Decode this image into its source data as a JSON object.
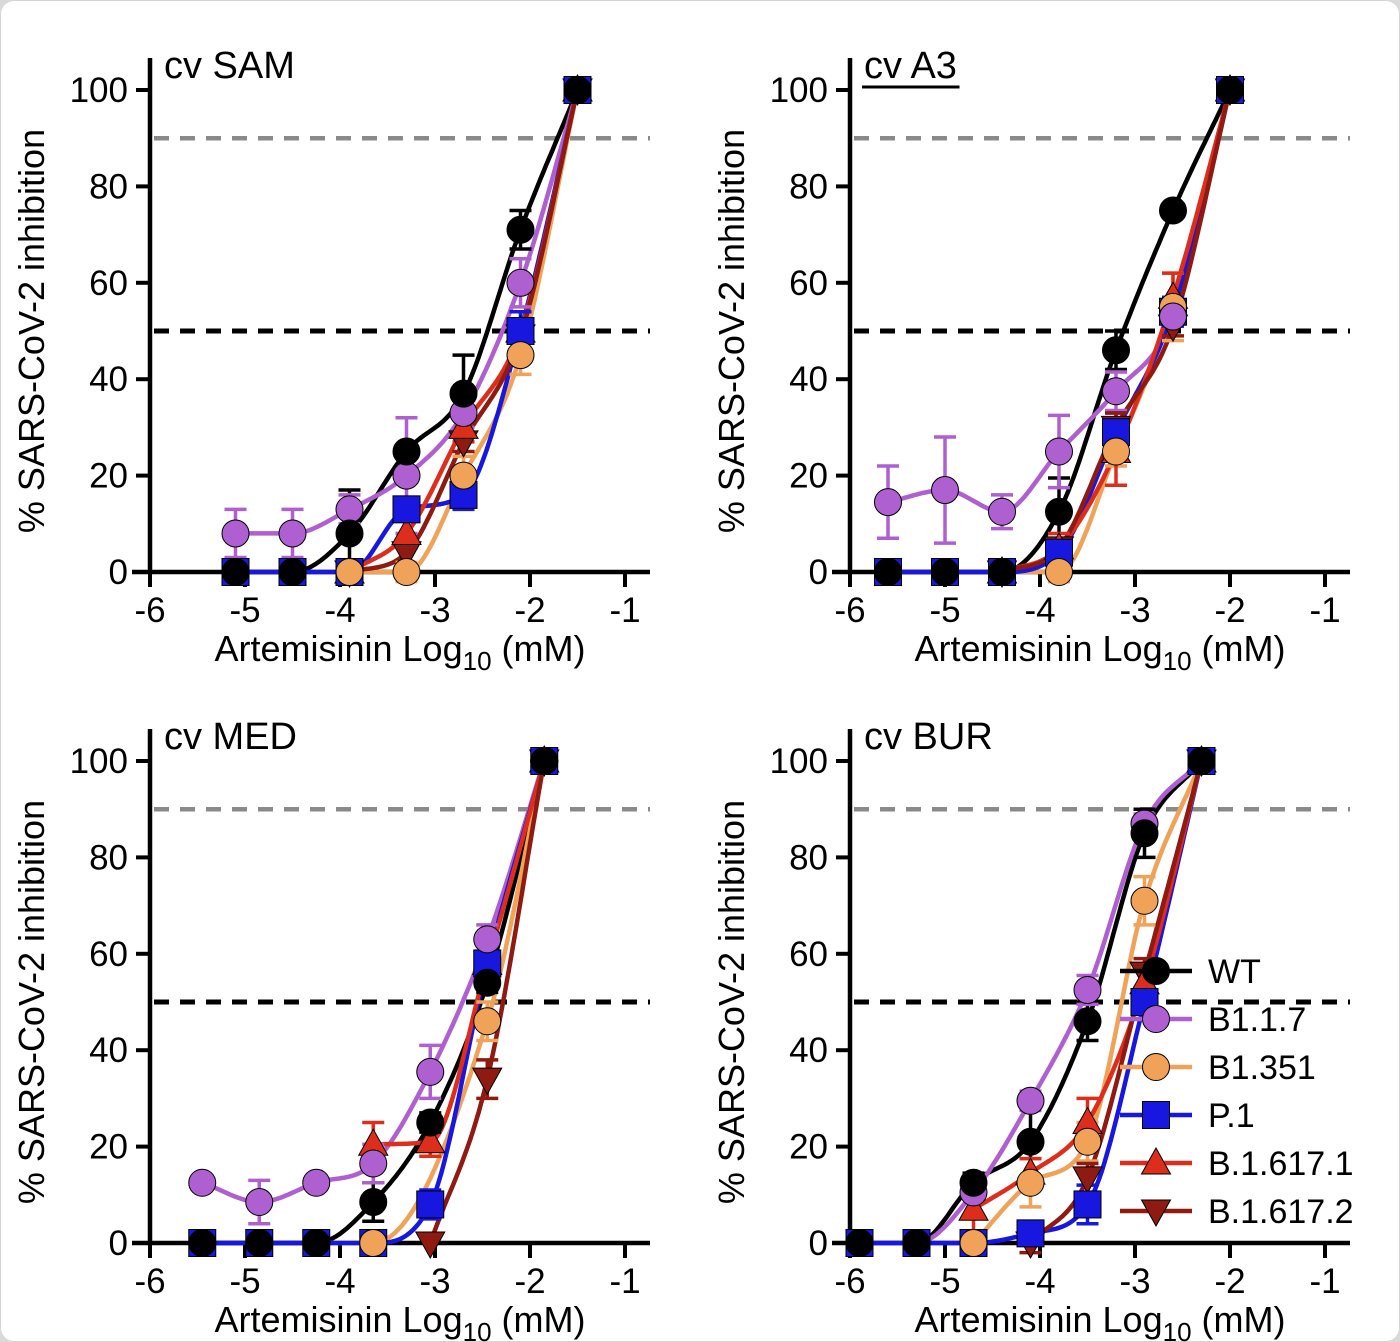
{
  "figure": {
    "y_axis_label": "% SARS-CoV-2 inhibition",
    "x_axis_label_prefix": "Artemisinin Log",
    "x_axis_label_sub": "10",
    "x_axis_label_suffix": " (mM)",
    "y_ticks": [
      0,
      20,
      40,
      60,
      80,
      100
    ],
    "x_ticks": [
      -6,
      -5,
      -4,
      -3,
      -2,
      -1
    ],
    "hlines": [
      {
        "y": 90,
        "color": "#8a8a8a"
      },
      {
        "y": 50,
        "color": "#000000"
      }
    ],
    "axis_color": "#000000",
    "background": "#ffffff"
  },
  "legend": {
    "items": [
      {
        "label": "WT",
        "color": "#000000",
        "marker": "circle"
      },
      {
        "label": "B1.1.7",
        "color": "#ae5fd0",
        "marker": "circle"
      },
      {
        "label": "B1.351",
        "color": "#efa258",
        "marker": "circle"
      },
      {
        "label": "P.1",
        "color": "#1717e0",
        "marker": "square"
      },
      {
        "label": "B.1.617.1",
        "color": "#dd2e1c",
        "marker": "triangle-up"
      },
      {
        "label": "B.1.617.2",
        "color": "#8e1a12",
        "marker": "triangle-down"
      }
    ]
  },
  "chart_data": [
    {
      "type": "line",
      "title": "cv SAM",
      "title_underline": false,
      "show_legend": false,
      "xlabel": "Artemisinin Log10 (mM)",
      "ylabel": "% SARS-CoV-2 inhibition",
      "xlim": [
        -6,
        -1
      ],
      "ylim": [
        0,
        100
      ],
      "x": [
        -5.1,
        -4.5,
        -3.9,
        -3.3,
        -2.7,
        -2.1,
        -1.5
      ],
      "series": [
        {
          "name": "WT",
          "values": [
            0,
            0,
            8,
            25,
            37,
            71,
            100
          ],
          "errors": [
            0,
            0,
            9,
            0,
            8,
            4,
            0
          ]
        },
        {
          "name": "B1.1.7",
          "values": [
            8,
            8,
            13,
            20,
            33,
            60,
            100
          ],
          "errors": [
            5,
            5,
            3,
            12,
            3,
            5,
            0
          ]
        },
        {
          "name": "B1.351",
          "values": [
            null,
            null,
            0,
            0,
            20,
            45,
            100
          ],
          "errors": [
            0,
            0,
            0,
            2,
            4,
            4,
            0
          ]
        },
        {
          "name": "P.1",
          "values": [
            0,
            0,
            0,
            13,
            16,
            50,
            100
          ],
          "errors": [
            0,
            0,
            0,
            2,
            3,
            4,
            0
          ]
        },
        {
          "name": "B.1.617.1",
          "values": [
            null,
            null,
            0,
            8,
            30,
            50,
            100
          ],
          "errors": [
            0,
            0,
            0,
            3,
            3,
            0,
            0
          ]
        },
        {
          "name": "B.1.617.2",
          "values": [
            null,
            null,
            0,
            4,
            27,
            49,
            100
          ],
          "errors": [
            0,
            0,
            0,
            0,
            2,
            0,
            0
          ]
        }
      ]
    },
    {
      "type": "line",
      "title": "cv A3",
      "title_underline": true,
      "show_legend": false,
      "xlabel": "Artemisinin Log10 (mM)",
      "ylabel": "% SARS-CoV-2 inhibition",
      "xlim": [
        -6,
        -1
      ],
      "ylim": [
        0,
        100
      ],
      "x": [
        -5.6,
        -5.0,
        -4.4,
        -3.8,
        -3.2,
        -2.6,
        -2.0
      ],
      "series": [
        {
          "name": "WT",
          "values": [
            0,
            0,
            0,
            12.5,
            46,
            75,
            100
          ],
          "errors": [
            0,
            0,
            0,
            7,
            4,
            0,
            0
          ]
        },
        {
          "name": "B1.1.7",
          "values": [
            14.5,
            17,
            12.5,
            25,
            37.5,
            53,
            100
          ],
          "errors": [
            7.5,
            11,
            3.5,
            7.5,
            4,
            0,
            0
          ]
        },
        {
          "name": "B1.351",
          "values": [
            null,
            null,
            0,
            0,
            25,
            55,
            100
          ],
          "errors": [
            0,
            0,
            0,
            2,
            3,
            7,
            0
          ]
        },
        {
          "name": "P.1",
          "values": [
            0,
            0,
            0,
            4,
            29,
            54,
            100
          ],
          "errors": [
            0,
            0,
            0,
            3,
            4,
            3,
            0
          ]
        },
        {
          "name": "B.1.617.1",
          "values": [
            null,
            null,
            0,
            5,
            25,
            57,
            100
          ],
          "errors": [
            0,
            0,
            0,
            3,
            7,
            5,
            0
          ]
        },
        {
          "name": "B.1.617.2",
          "values": [
            null,
            null,
            0,
            5,
            30,
            51,
            100
          ],
          "errors": [
            0,
            0,
            0,
            2,
            3,
            2,
            0
          ]
        }
      ]
    },
    {
      "type": "line",
      "title": "cv MED",
      "title_underline": false,
      "show_legend": false,
      "xlabel": "Artemisinin Log10 (mM)",
      "ylabel": "% SARS-CoV-2 inhibition",
      "xlim": [
        -6,
        -1
      ],
      "ylim": [
        0,
        100
      ],
      "x": [
        -5.45,
        -4.85,
        -4.25,
        -3.65,
        -3.05,
        -2.45,
        -1.85
      ],
      "series": [
        {
          "name": "WT",
          "values": [
            0,
            0,
            0,
            8.5,
            25,
            54,
            100
          ],
          "errors": [
            0,
            0,
            0,
            4,
            2,
            2,
            0
          ]
        },
        {
          "name": "B1.1.7",
          "values": [
            12.5,
            8.5,
            12.5,
            16.5,
            35.5,
            63,
            100
          ],
          "errors": [
            0,
            4.5,
            0,
            4,
            5.5,
            3,
            0
          ]
        },
        {
          "name": "B1.351",
          "values": [
            null,
            null,
            0,
            0,
            null,
            46,
            100
          ],
          "errors": [
            0,
            0,
            0,
            0,
            0,
            4,
            0
          ]
        },
        {
          "name": "P.1",
          "values": [
            0,
            0,
            0,
            0,
            8,
            58,
            100
          ],
          "errors": [
            0,
            0,
            0,
            0,
            3,
            2,
            0
          ]
        },
        {
          "name": "B.1.617.1",
          "values": [
            null,
            null,
            null,
            20.5,
            21,
            58,
            100
          ],
          "errors": [
            0,
            0,
            0,
            4.5,
            3,
            0,
            0
          ]
        },
        {
          "name": "B.1.617.2",
          "values": [
            null,
            null,
            null,
            null,
            0,
            34,
            100
          ],
          "errors": [
            0,
            0,
            0,
            0,
            0,
            4,
            0
          ]
        }
      ]
    },
    {
      "type": "line",
      "title": "cv BUR",
      "title_underline": false,
      "show_legend": true,
      "xlabel": "Artemisinin Log10 (mM)",
      "ylabel": "% SARS-CoV-2 inhibition",
      "xlim": [
        -6,
        -1
      ],
      "ylim": [
        0,
        100
      ],
      "x": [
        -5.9,
        -5.3,
        -4.7,
        -4.1,
        -3.5,
        -2.9,
        -2.3
      ],
      "series": [
        {
          "name": "WT",
          "values": [
            0,
            0,
            12.5,
            21,
            46,
            85,
            100
          ],
          "errors": [
            0,
            0,
            2,
            8,
            4,
            5,
            0
          ]
        },
        {
          "name": "B1.1.7",
          "values": [
            0,
            0,
            10.5,
            29.5,
            52.5,
            87,
            100
          ],
          "errors": [
            0,
            0,
            0,
            2,
            3,
            2,
            0
          ]
        },
        {
          "name": "B1.351",
          "values": [
            null,
            null,
            0,
            12.5,
            21,
            71,
            100
          ],
          "errors": [
            0,
            0,
            0,
            5,
            4,
            5,
            0
          ]
        },
        {
          "name": "P.1",
          "values": [
            0,
            0,
            0,
            2,
            8,
            50,
            100
          ],
          "errors": [
            0,
            0,
            0,
            2,
            4,
            0,
            0
          ]
        },
        {
          "name": "B.1.617.1",
          "values": [
            null,
            null,
            7,
            14.5,
            25,
            54,
            100
          ],
          "errors": [
            0,
            0,
            5,
            3,
            5,
            4,
            0
          ]
        },
        {
          "name": "B.1.617.2",
          "values": [
            null,
            null,
            null,
            0,
            13.5,
            56,
            100
          ],
          "errors": [
            0,
            0,
            0,
            2,
            3,
            3,
            0
          ]
        }
      ]
    }
  ]
}
